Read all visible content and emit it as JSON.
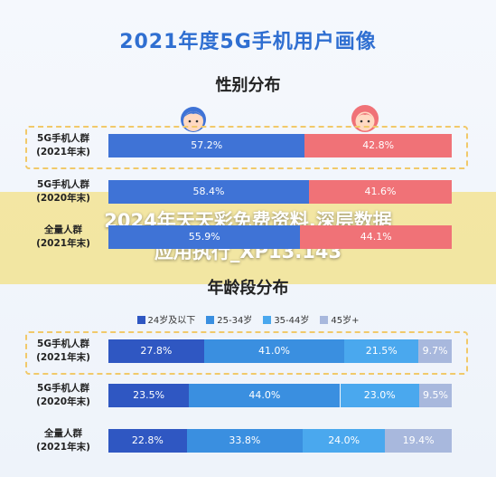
{
  "title": "2021年度5G手机用户画像",
  "gender_title": "性别分布",
  "age_title": "年龄段分布",
  "banner": {
    "line1": "2024年天天彩免费资料,深层数据",
    "line2": "应用执行_XP13.143"
  },
  "colors": {
    "male": "#3f73d6",
    "female": "#f07277",
    "age1": "#2f57c2",
    "age2": "#3a8fe0",
    "age3": "#4aa8ee",
    "age4": "#a8b8dd",
    "highlight": "#f1c96a"
  },
  "chart_data": [
    {
      "type": "bar",
      "stacked": true,
      "orientation": "horizontal",
      "title": "性别分布",
      "categories": [
        [
          "5G手机人群",
          "(2021年末)"
        ],
        [
          "5G手机人群",
          "(2020年末)"
        ],
        [
          "全量人群",
          "(2021年末)"
        ]
      ],
      "series": [
        {
          "values": [
            57.2,
            58.4,
            55.9
          ]
        },
        {
          "values": [
            42.8,
            41.6,
            null
          ]
        }
      ],
      "labels": [
        [
          "57.2%",
          "58.4%",
          "55.9%"
        ],
        [
          "42.8%",
          "41.6%",
          "44.1%"
        ]
      ]
    },
    {
      "type": "bar",
      "stacked": true,
      "orientation": "horizontal",
      "title": "年龄段分布",
      "categories": [
        [
          "5G手机人群",
          "(2021年末)"
        ],
        [
          "5G手机人群",
          "(2020年末)"
        ],
        [
          "全量人群",
          "(2021年末)"
        ]
      ],
      "series": [
        {
          "name": "24岁及以下",
          "values": [
            27.8,
            23.5,
            22.8
          ]
        },
        {
          "name": "25-34岁",
          "values": [
            41.0,
            44.0,
            33.8
          ]
        },
        {
          "name": "35-44岁",
          "values": [
            21.5,
            23.0,
            24.0
          ]
        },
        {
          "name": "45岁+",
          "values": [
            9.7,
            9.5,
            19.4
          ]
        }
      ]
    }
  ]
}
